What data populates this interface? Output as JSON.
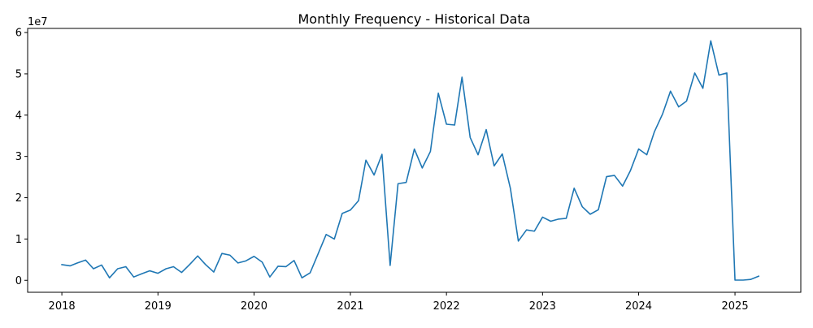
{
  "chart_data": {
    "type": "line",
    "title": "Monthly Frequency - Historical Data",
    "xlabel": "",
    "ylabel": "",
    "y_offset_label": "1e7",
    "x_ticks": [
      "2018",
      "2019",
      "2020",
      "2021",
      "2022",
      "2023",
      "2024",
      "2025"
    ],
    "y_ticks": [
      "0",
      "1",
      "2",
      "3",
      "4",
      "5",
      "6"
    ],
    "y_tick_values": [
      0,
      10000000,
      20000000,
      30000000,
      40000000,
      50000000,
      60000000
    ],
    "xlim": [
      "2017-08-24",
      "2025-09-08"
    ],
    "ylim": [
      -2900000,
      61000000
    ],
    "grid": false,
    "legend": "none",
    "series": [
      {
        "color": "#1f77b4",
        "x": [
          "2018-01-01",
          "2018-02-01",
          "2018-03-01",
          "2018-04-01",
          "2018-05-01",
          "2018-06-01",
          "2018-07-01",
          "2018-08-01",
          "2018-09-01",
          "2018-10-01",
          "2018-11-01",
          "2018-12-01",
          "2019-01-01",
          "2019-02-01",
          "2019-03-01",
          "2019-04-01",
          "2019-05-01",
          "2019-06-01",
          "2019-07-01",
          "2019-08-01",
          "2019-09-01",
          "2019-10-01",
          "2019-11-01",
          "2019-12-01",
          "2020-01-01",
          "2020-02-01",
          "2020-03-01",
          "2020-04-01",
          "2020-05-01",
          "2020-06-01",
          "2020-07-01",
          "2020-08-01",
          "2020-09-01",
          "2020-10-01",
          "2020-11-01",
          "2020-12-01",
          "2021-01-01",
          "2021-02-01",
          "2021-03-01",
          "2021-04-01",
          "2021-05-01",
          "2021-06-01",
          "2021-07-01",
          "2021-08-01",
          "2021-09-01",
          "2021-10-01",
          "2021-11-01",
          "2021-12-01",
          "2022-01-01",
          "2022-02-01",
          "2022-03-01",
          "2022-04-01",
          "2022-05-01",
          "2022-06-01",
          "2022-07-01",
          "2022-08-01",
          "2022-09-01",
          "2022-10-01",
          "2022-11-01",
          "2022-12-01",
          "2023-01-01",
          "2023-02-01",
          "2023-03-01",
          "2023-04-01",
          "2023-05-01",
          "2023-06-01",
          "2023-07-01",
          "2023-08-01",
          "2023-09-01",
          "2023-10-01",
          "2023-11-01",
          "2023-12-01",
          "2024-01-01",
          "2024-02-01",
          "2024-03-01",
          "2024-04-01",
          "2024-05-01",
          "2024-06-01",
          "2024-07-01",
          "2024-08-01",
          "2024-09-01",
          "2024-10-01",
          "2024-11-01",
          "2024-12-01",
          "2025-01-01",
          "2025-02-01",
          "2025-03-01",
          "2025-04-01"
        ],
        "values": [
          3800000,
          3500000,
          4200000,
          4900000,
          2800000,
          3700000,
          600000,
          2800000,
          3300000,
          800000,
          1600000,
          2300000,
          1700000,
          2800000,
          3300000,
          1900000,
          3800000,
          5900000,
          3800000,
          2000000,
          6500000,
          6100000,
          4200000,
          4700000,
          5800000,
          4400000,
          800000,
          3400000,
          3300000,
          4800000,
          600000,
          1800000,
          6500000,
          11100000,
          10000000,
          16200000,
          17000000,
          19300000,
          29100000,
          25500000,
          30500000,
          3600000,
          23400000,
          23700000,
          31800000,
          27200000,
          31200000,
          45300000,
          37800000,
          37600000,
          49200000,
          34600000,
          30400000,
          36500000,
          27700000,
          30600000,
          22200000,
          9500000,
          12200000,
          11900000,
          15300000,
          14300000,
          14800000,
          15000000,
          22300000,
          17800000,
          16000000,
          17100000,
          25100000,
          25400000,
          22800000,
          26600000,
          31800000,
          30400000,
          36000000,
          40300000,
          45800000,
          42000000,
          43400000,
          50200000,
          46500000,
          58000000,
          49700000,
          50200000,
          50000,
          50000,
          200000,
          1000000
        ]
      }
    ]
  }
}
